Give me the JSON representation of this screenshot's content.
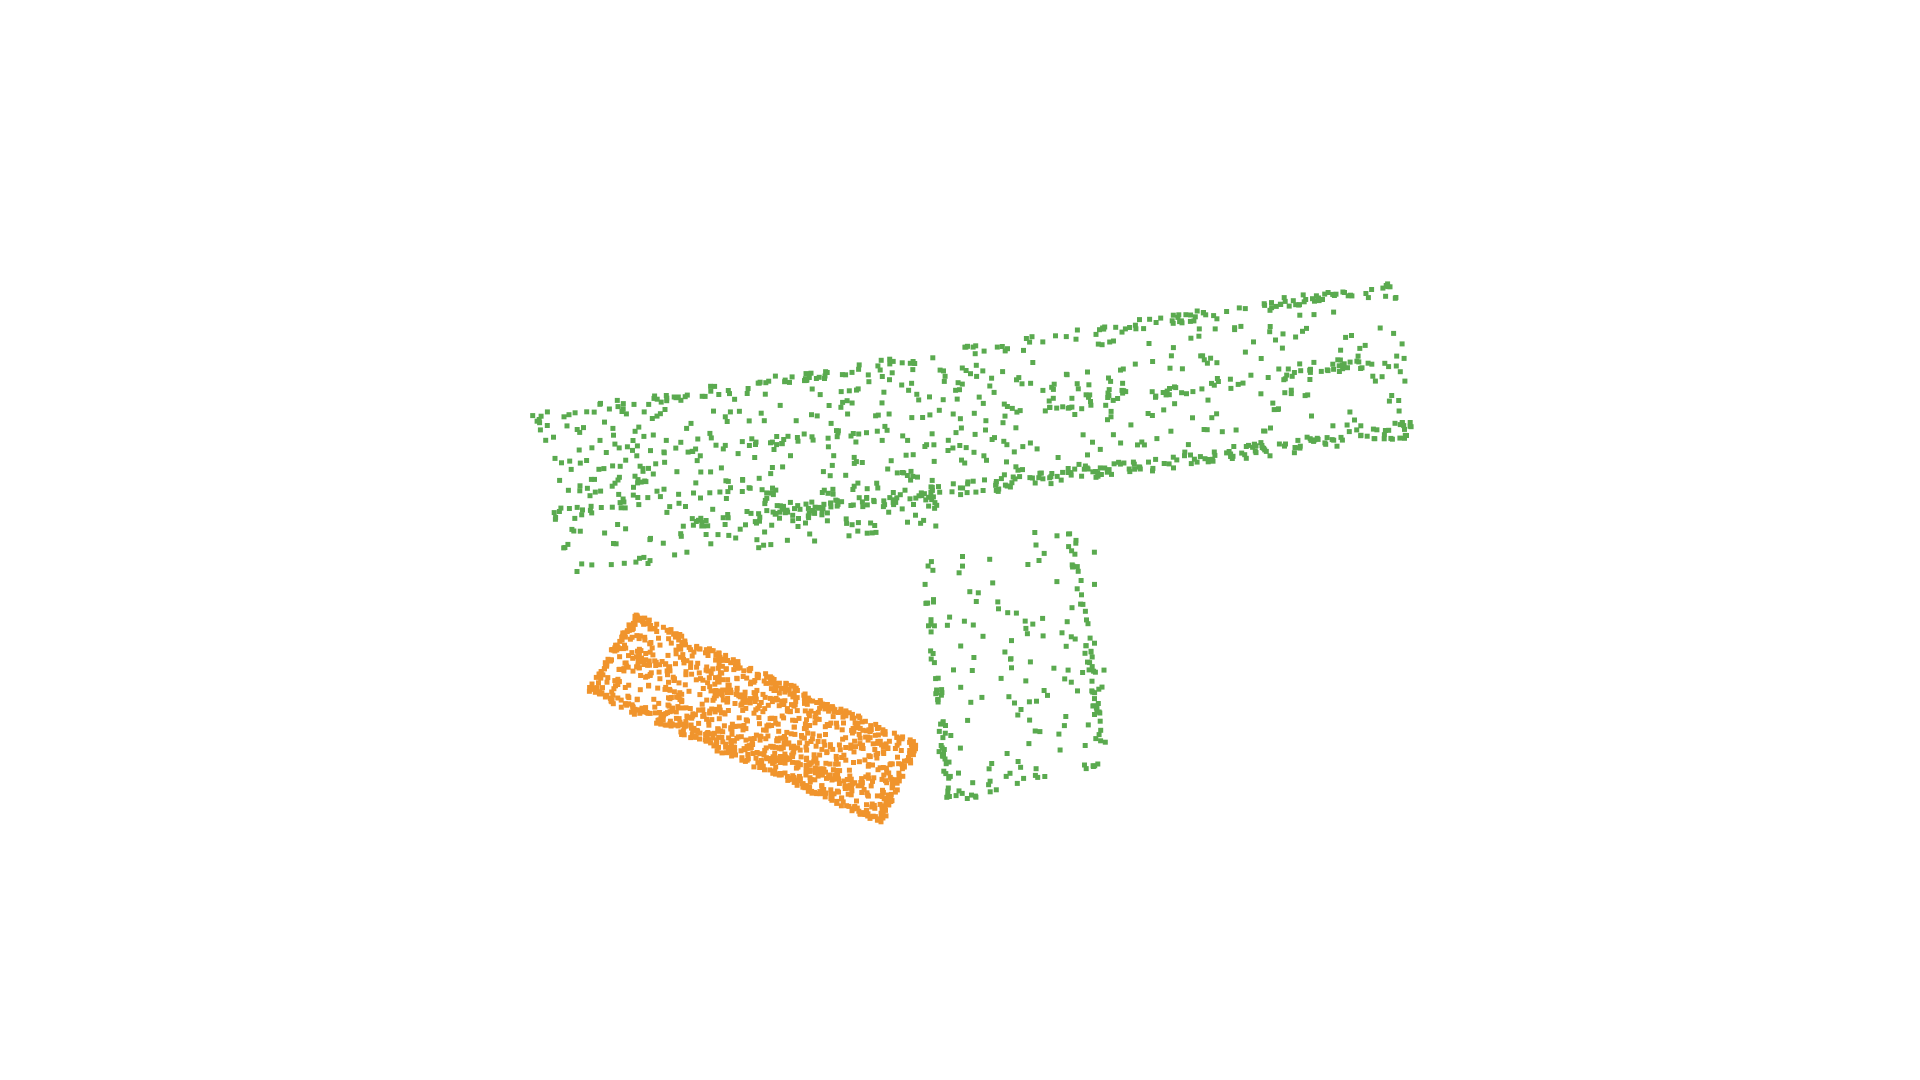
{
  "scene": {
    "background": "#ffffff",
    "objects": [
      {
        "id": "green-object",
        "color": "#5aaa4f"
      },
      {
        "id": "orange-object",
        "color": "#f0942c"
      }
    ]
  }
}
